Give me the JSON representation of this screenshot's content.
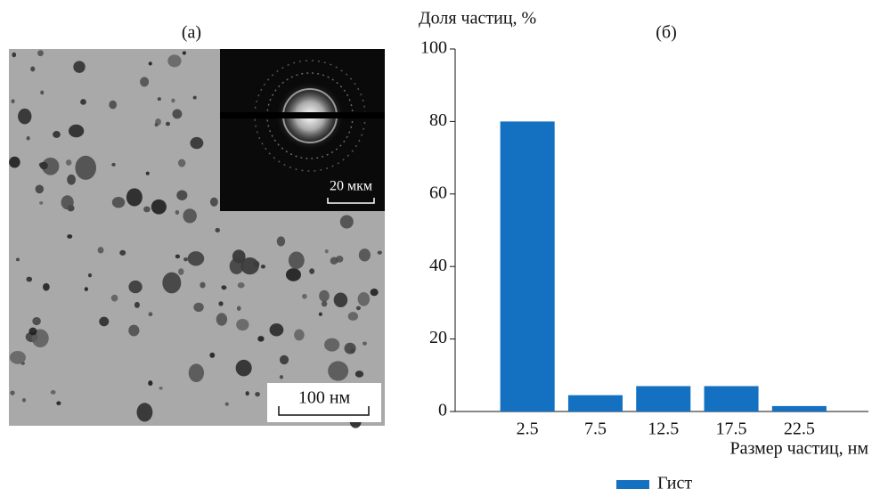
{
  "panel_a": {
    "label": "(а)",
    "scale_bar": "100 нм",
    "inset_scale_bar": "20 мкм"
  },
  "chart_data": {
    "type": "bar",
    "title": "(б)",
    "y_label": "Доля частиц, %",
    "x_label": "Размер частиц, нм",
    "categories": [
      "2.5",
      "7.5",
      "12.5",
      "17.5",
      "22.5"
    ],
    "series": [
      {
        "name": "Гист",
        "color": "#1470c0",
        "values": [
          80,
          4.5,
          7,
          7,
          1.5
        ]
      }
    ],
    "ylim": [
      0,
      100
    ],
    "yticks": [
      0,
      20,
      40,
      60,
      80,
      100
    ],
    "legend": "bottom"
  }
}
